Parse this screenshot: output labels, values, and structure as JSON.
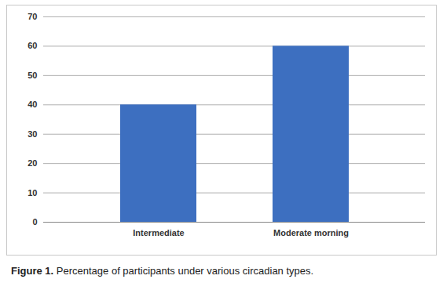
{
  "chart_data": {
    "type": "bar",
    "caption": "Figure 1. Percentage of participants under various circadian types.",
    "categories": [
      "Intermediate",
      "Moderate morning"
    ],
    "values": [
      40,
      60
    ],
    "color": "#3d6fc0",
    "ylim": [
      0,
      70
    ],
    "yticks": [
      0,
      10,
      20,
      30,
      40,
      50,
      60,
      70
    ],
    "grid": true
  }
}
